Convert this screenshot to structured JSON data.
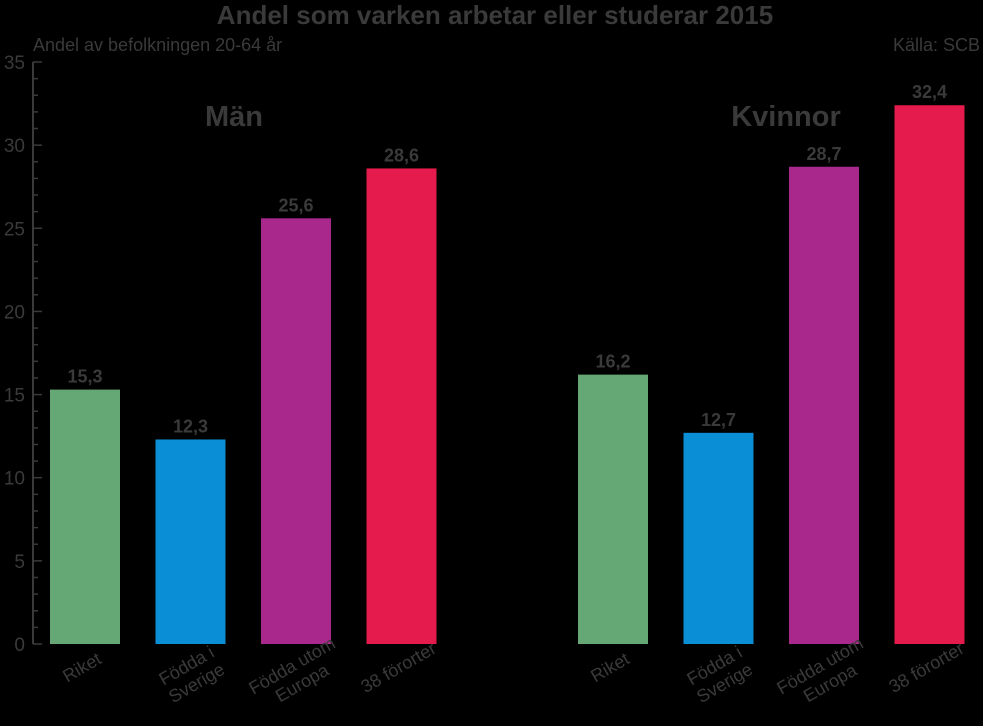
{
  "chart_data": {
    "type": "bar",
    "title": "Andel som varken arbetar eller studerar 2015",
    "ylabel": "Andel av befolkningen 20-64 år",
    "source": "Källa: SCB",
    "ylim": [
      0,
      35
    ],
    "yticks": [
      0,
      5,
      10,
      15,
      20,
      25,
      30,
      35
    ],
    "grid": false,
    "groups": [
      {
        "name": "Män",
        "categories": [
          [
            "Riket"
          ],
          [
            "Födda i",
            "Sverige"
          ],
          [
            "Födda utom",
            "Europa"
          ],
          [
            "38 förorter"
          ]
        ],
        "values": [
          15.3,
          12.3,
          25.6,
          28.6
        ],
        "labels": [
          "15,3",
          "12,3",
          "25,6",
          "28,6"
        ]
      },
      {
        "name": "Kvinnor",
        "categories": [
          [
            "Riket"
          ],
          [
            "Födda  i",
            "Sverige"
          ],
          [
            "Födda utom",
            "Europa"
          ],
          [
            "38 förorter"
          ]
        ],
        "values": [
          16.2,
          12.7,
          28.7,
          32.4
        ],
        "labels": [
          "16,2",
          "12,7",
          "28,7",
          "32,4"
        ]
      }
    ],
    "colors": [
      "#66a776",
      "#0a8fd6",
      "#a9288c",
      "#e41b4c"
    ]
  }
}
